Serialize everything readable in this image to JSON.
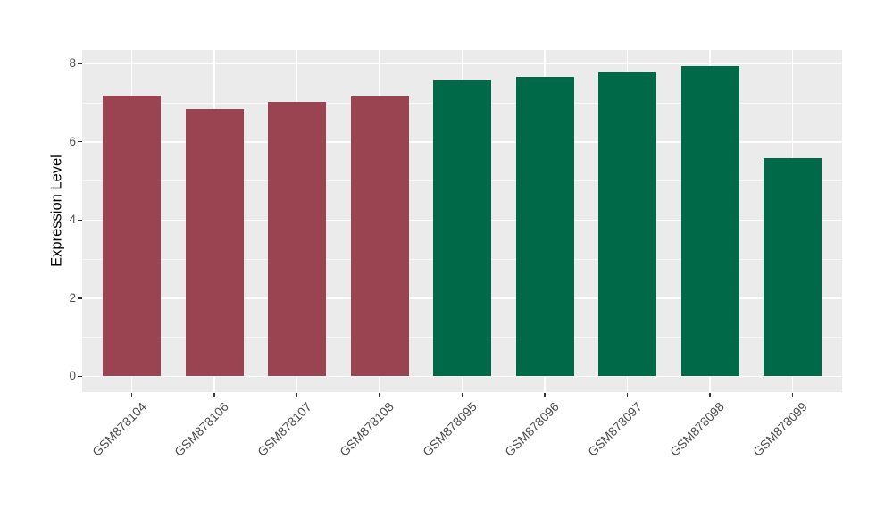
{
  "chart_data": {
    "type": "bar",
    "title": "",
    "xlabel": "",
    "ylabel": "Expression Level",
    "categories": [
      "GSM878104",
      "GSM878106",
      "GSM878107",
      "GSM878108",
      "GSM878095",
      "GSM878096",
      "GSM878097",
      "GSM878098",
      "GSM878099"
    ],
    "values": [
      7.19,
      6.85,
      7.02,
      7.16,
      7.57,
      7.67,
      7.77,
      7.94,
      5.59
    ],
    "bar_colors": [
      "#9A4452",
      "#9A4452",
      "#9A4452",
      "#9A4452",
      "#006948",
      "#006948",
      "#006948",
      "#006948",
      "#006948"
    ],
    "ylim": [
      -0.4,
      8.35
    ],
    "y_major_ticks": [
      "0",
      "2",
      "4",
      "6",
      "8"
    ],
    "y_major_tick_values": [
      0,
      2,
      4,
      6,
      8
    ],
    "y_minor_gridline_values": [
      1,
      3,
      5,
      7
    ],
    "x_tick_angle_deg": 45,
    "legend": "none",
    "grid": "on",
    "panel_background": "#EBEBEB",
    "grid_major_color": "#FFFFFF",
    "grid_minor_color": "#FFFFFF",
    "axis_text_color": "#4D4D4D",
    "axis_title_color": "#000000",
    "tick_mark_color": "#333333",
    "figure_background": "#FFFFFF"
  }
}
